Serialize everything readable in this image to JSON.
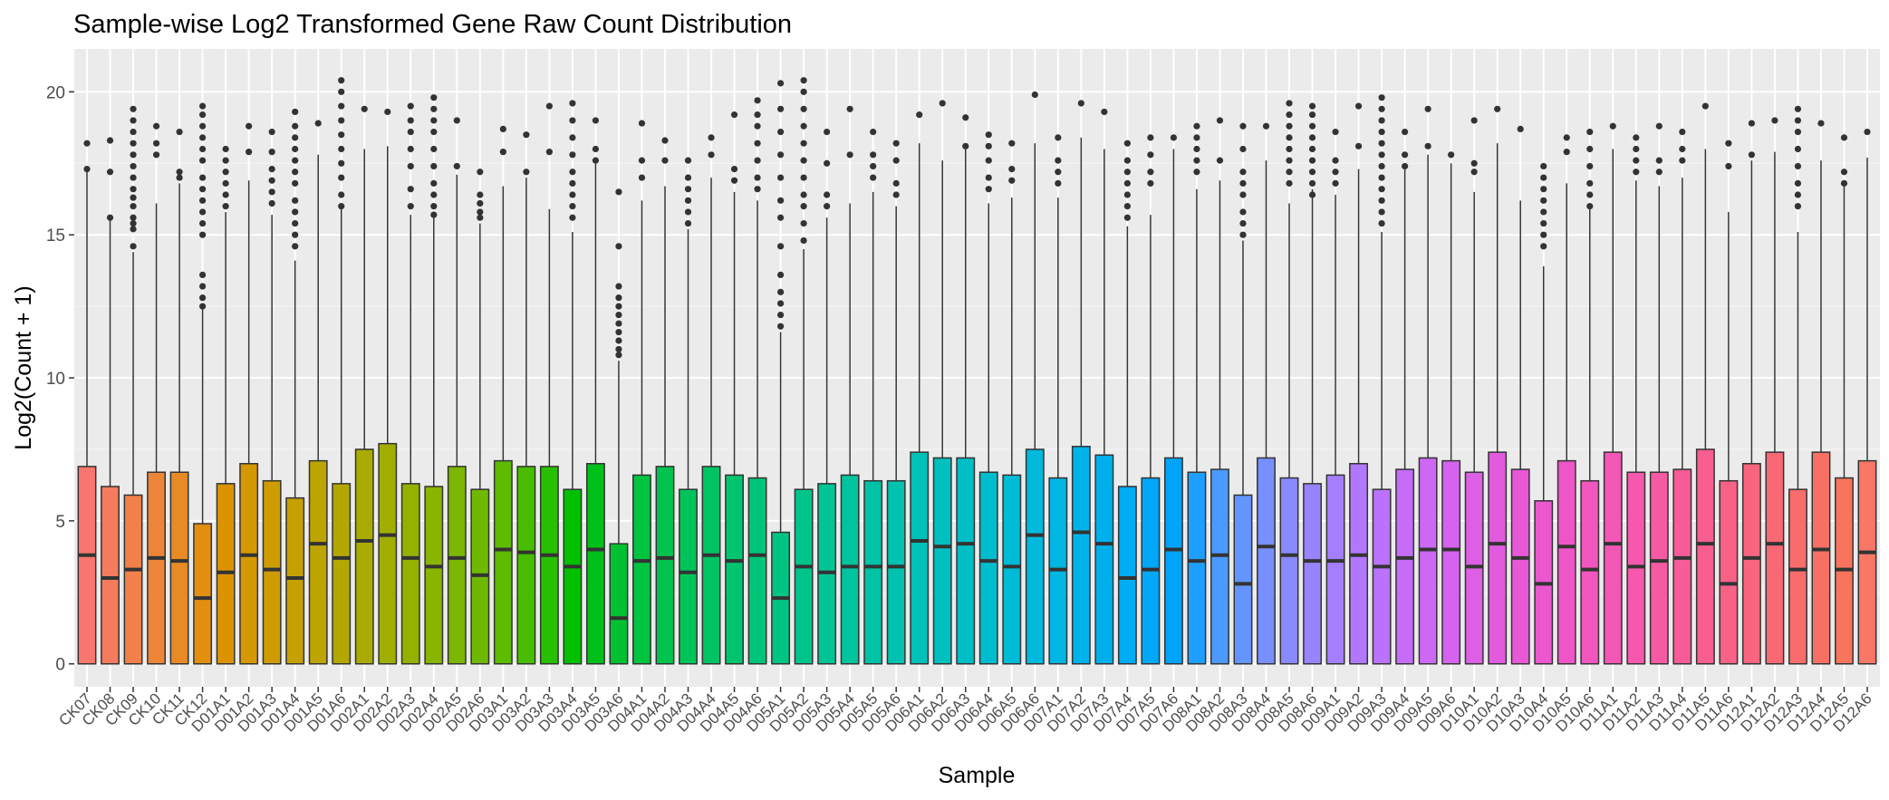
{
  "chart_data": {
    "type": "boxplot",
    "title": "Sample-wise Log2 Transformed Gene Raw Count Distribution",
    "xlabel": "Sample",
    "ylabel": "Log2(Count + 1)",
    "ylim": [
      -0.8,
      21.5
    ],
    "yticks": [
      0,
      5,
      10,
      15,
      20
    ],
    "grid": true,
    "legend": "none",
    "categories": [
      "CK07",
      "CK08",
      "CK09",
      "CK10",
      "CK11",
      "CK12",
      "D01A1",
      "D01A2",
      "D01A3",
      "D01A4",
      "D01A5",
      "D01A6",
      "D02A1",
      "D02A2",
      "D02A3",
      "D02A4",
      "D02A5",
      "D02A6",
      "D03A1",
      "D03A2",
      "D03A3",
      "D03A4",
      "D03A5",
      "D03A6",
      "D04A1",
      "D04A2",
      "D04A3",
      "D04A4",
      "D04A5",
      "D04A6",
      "D05A1",
      "D05A2",
      "D05A3",
      "D05A4",
      "D05A5",
      "D05A6",
      "D06A1",
      "D06A2",
      "D06A3",
      "D06A4",
      "D06A5",
      "D06A6",
      "D07A1",
      "D07A2",
      "D07A3",
      "D07A4",
      "D07A5",
      "D07A6",
      "D08A1",
      "D08A2",
      "D08A3",
      "D08A4",
      "D08A5",
      "D08A6",
      "D09A1",
      "D09A2",
      "D09A3",
      "D09A4",
      "D09A5",
      "D09A6",
      "D10A1",
      "D10A2",
      "D10A3",
      "D10A4",
      "D10A5",
      "D10A6",
      "D11A1",
      "D11A2",
      "D11A3",
      "D11A4",
      "D11A5",
      "D11A6",
      "D12A1",
      "D12A2",
      "D12A3",
      "D12A4",
      "D12A5",
      "D12A6"
    ],
    "q3": [
      6.9,
      6.2,
      5.9,
      6.7,
      6.7,
      4.9,
      6.3,
      7.0,
      6.4,
      5.8,
      7.1,
      6.3,
      7.5,
      7.7,
      6.3,
      6.2,
      6.9,
      6.1,
      7.1,
      6.9,
      6.9,
      6.1,
      7.0,
      4.2,
      6.6,
      6.9,
      6.1,
      6.9,
      6.6,
      6.5,
      4.6,
      6.1,
      6.3,
      6.6,
      6.4,
      6.4,
      7.4,
      7.2,
      7.2,
      6.7,
      6.6,
      7.5,
      6.5,
      7.6,
      7.3,
      6.2,
      6.5,
      7.2,
      6.7,
      6.8,
      5.9,
      7.2,
      6.5,
      6.3,
      6.6,
      7.0,
      6.1,
      6.8,
      7.2,
      7.1,
      6.7,
      7.4,
      6.8,
      5.7,
      7.1,
      6.4,
      7.4,
      6.7,
      6.7,
      6.8,
      7.5,
      6.4,
      7.0,
      7.4,
      6.1,
      7.4,
      6.5,
      7.1
    ],
    "median": [
      3.8,
      3.0,
      3.3,
      3.7,
      3.6,
      2.3,
      3.2,
      3.8,
      3.3,
      3.0,
      4.2,
      3.7,
      4.3,
      4.5,
      3.7,
      3.4,
      3.7,
      3.1,
      4.0,
      3.9,
      3.8,
      3.4,
      4.0,
      1.6,
      3.6,
      3.7,
      3.2,
      3.8,
      3.6,
      3.8,
      2.3,
      3.4,
      3.2,
      3.4,
      3.4,
      3.4,
      4.3,
      4.1,
      4.2,
      3.6,
      3.4,
      4.5,
      3.3,
      4.6,
      4.2,
      3.0,
      3.3,
      4.0,
      3.6,
      3.8,
      2.8,
      4.1,
      3.8,
      3.6,
      3.6,
      3.8,
      3.4,
      3.7,
      4.0,
      4.0,
      3.4,
      4.2,
      3.7,
      2.8,
      4.1,
      3.3,
      4.2,
      3.4,
      3.6,
      3.7,
      4.2,
      2.8,
      3.7,
      4.2,
      3.3,
      4.0,
      3.3,
      3.9
    ],
    "whisker_max": [
      17.3,
      15.5,
      14.4,
      16.1,
      16.8,
      12.4,
      15.8,
      16.9,
      15.7,
      14.1,
      17.8,
      15.9,
      18.0,
      18.1,
      15.7,
      15.6,
      17.1,
      15.4,
      16.7,
      17.0,
      15.9,
      15.1,
      17.5,
      10.6,
      16.2,
      16.7,
      15.2,
      17.0,
      16.5,
      16.2,
      11.6,
      14.5,
      15.6,
      16.1,
      16.5,
      16.0,
      18.2,
      17.6,
      18.0,
      16.1,
      16.3,
      18.2,
      16.3,
      18.4,
      18.0,
      15.3,
      15.7,
      18.0,
      16.6,
      16.9,
      14.8,
      17.6,
      16.1,
      16.6,
      16.4,
      17.3,
      15.1,
      17.3,
      17.8,
      17.5,
      16.5,
      18.2,
      16.2,
      13.9,
      16.8,
      15.9,
      18.0,
      16.9,
      16.7,
      17.0,
      18.0,
      15.8,
      17.6,
      17.9,
      15.1,
      17.6,
      16.9,
      17.7
    ],
    "outliers": [
      [
        17.3,
        18.2
      ],
      [
        15.6,
        17.2,
        18.3
      ],
      [
        14.6,
        15.2,
        15.4,
        15.6,
        16.0,
        16.3,
        16.6,
        17.0,
        17.4,
        17.8,
        18.2,
        18.6,
        19.0,
        19.4
      ],
      [
        17.8,
        18.2,
        18.8
      ],
      [
        17.0,
        17.2,
        18.6
      ],
      [
        12.5,
        12.8,
        13.2,
        13.6,
        15.0,
        15.4,
        15.8,
        16.2,
        16.6,
        17.0,
        17.6,
        18.0,
        18.4,
        18.8,
        19.2,
        19.5
      ],
      [
        16.0,
        16.4,
        16.8,
        17.2,
        17.6,
        18.0
      ],
      [
        17.9,
        18.8
      ],
      [
        16.1,
        16.5,
        16.9,
        17.3,
        17.9,
        18.6
      ],
      [
        14.6,
        15.0,
        15.4,
        15.8,
        16.2,
        16.8,
        17.2,
        17.6,
        18.0,
        18.4,
        18.8,
        19.3
      ],
      [
        18.9
      ],
      [
        16.0,
        16.4,
        17.0,
        17.5,
        18.0,
        18.5,
        19.0,
        19.5,
        20.0,
        20.4
      ],
      [
        19.4
      ],
      [
        19.3
      ],
      [
        16.0,
        16.6,
        17.4,
        18.0,
        18.6,
        19.0,
        19.5
      ],
      [
        15.7,
        16.0,
        16.4,
        16.8,
        17.4,
        18.0,
        18.6,
        19.0,
        19.4,
        19.8
      ],
      [
        17.4,
        19.0
      ],
      [
        15.6,
        15.8,
        16.1,
        16.4,
        17.2
      ],
      [
        17.9,
        18.7
      ],
      [
        17.2,
        18.5
      ],
      [
        17.9,
        19.5
      ],
      [
        15.6,
        16.0,
        16.4,
        16.8,
        17.2,
        17.8,
        18.4,
        19.0,
        19.6
      ],
      [
        17.6,
        18.0,
        19.0
      ],
      [
        10.8,
        11.0,
        11.3,
        11.6,
        11.9,
        12.2,
        12.5,
        12.8,
        13.2,
        14.6,
        16.5
      ],
      [
        17.0,
        17.6,
        18.9
      ],
      [
        17.6,
        18.3
      ],
      [
        15.4,
        15.8,
        16.2,
        16.6,
        17.0,
        17.6
      ],
      [
        17.8,
        18.4
      ],
      [
        16.9,
        17.3,
        19.2
      ],
      [
        16.6,
        17.0,
        17.6,
        18.2,
        18.8,
        19.2,
        19.7
      ],
      [
        11.8,
        12.2,
        12.6,
        13.0,
        13.6,
        14.6,
        15.6,
        16.2,
        17.0,
        17.8,
        18.6,
        19.4,
        20.3
      ],
      [
        14.8,
        15.4,
        16.0,
        16.4,
        17.0,
        17.6,
        18.2,
        18.8,
        19.4,
        20.0,
        20.4
      ],
      [
        16.0,
        16.4,
        17.5,
        18.6
      ],
      [
        17.8,
        19.4
      ],
      [
        17.0,
        17.4,
        17.8,
        18.6
      ],
      [
        16.4,
        16.8,
        17.6,
        18.2
      ],
      [
        19.2
      ],
      [
        19.6
      ],
      [
        18.1,
        19.1
      ],
      [
        16.6,
        17.0,
        17.6,
        18.1,
        18.5
      ],
      [
        16.9,
        17.3,
        18.2
      ],
      [
        19.9
      ],
      [
        16.8,
        17.2,
        17.6,
        18.4
      ],
      [
        19.6
      ],
      [
        19.3
      ],
      [
        15.6,
        16.0,
        16.4,
        16.8,
        17.2,
        17.6,
        18.2
      ],
      [
        16.8,
        17.2,
        17.8,
        18.4
      ],
      [
        18.4
      ],
      [
        17.2,
        17.6,
        18.0,
        18.4,
        18.8
      ],
      [
        17.6,
        19.0
      ],
      [
        15.0,
        15.4,
        15.8,
        16.4,
        16.8,
        17.2,
        18.0,
        18.8
      ],
      [
        18.8
      ],
      [
        16.8,
        17.2,
        17.6,
        18.0,
        18.4,
        18.8,
        19.2,
        19.6
      ],
      [
        16.4,
        16.8,
        17.2,
        17.6,
        18.0,
        18.4,
        18.8,
        19.2,
        19.5
      ],
      [
        16.8,
        17.2,
        17.6,
        18.6
      ],
      [
        18.1,
        19.5
      ],
      [
        15.4,
        15.8,
        16.2,
        16.6,
        17.0,
        17.4,
        17.8,
        18.2,
        18.6,
        19.0,
        19.4,
        19.8
      ],
      [
        17.4,
        17.8,
        18.6
      ],
      [
        18.1,
        19.4
      ],
      [
        17.8
      ],
      [
        17.2,
        17.5,
        19.0
      ],
      [
        19.4
      ],
      [
        18.7
      ],
      [
        14.6,
        15.0,
        15.4,
        15.8,
        16.2,
        16.6,
        17.0,
        17.4
      ],
      [
        17.9,
        18.4
      ],
      [
        16.0,
        16.4,
        16.8,
        17.4,
        18.0,
        18.6
      ],
      [
        18.8
      ],
      [
        17.2,
        17.6,
        18.0,
        18.4
      ],
      [
        17.2,
        17.6,
        18.8
      ],
      [
        17.6,
        18.0,
        18.6
      ],
      [
        19.5
      ],
      [
        17.4,
        18.2
      ],
      [
        17.8,
        18.9
      ],
      [
        19.0
      ],
      [
        16.0,
        16.4,
        16.8,
        17.4,
        18.0,
        18.6,
        19.0,
        19.4
      ],
      [
        18.9
      ],
      [
        16.8,
        17.2,
        18.4
      ],
      [
        18.6
      ]
    ],
    "colors": [
      "#F8766D",
      "#F47B5C",
      "#F1804A",
      "#EC8538",
      "#E88A25",
      "#E28F10",
      "#DC9300",
      "#D59800",
      "#CE9C00",
      "#C6A000",
      "#BDA400",
      "#B4A800",
      "#AAAB00",
      "#A0AE00",
      "#95B100",
      "#89B400",
      "#7CB600",
      "#6EB900",
      "#5DBB00",
      "#48BD00",
      "#28BF00",
      "#00C000",
      "#00C11A",
      "#00C230",
      "#00C340",
      "#00C44D",
      "#00C459",
      "#00C464",
      "#00C56E",
      "#00C578",
      "#00C582",
      "#00C58B",
      "#00C494",
      "#00C49D",
      "#00C3A6",
      "#00C2AF",
      "#00C1B7",
      "#00C0BF",
      "#00BEC6",
      "#00BDCE",
      "#00BBD5",
      "#00B9DB",
      "#00B6E2",
      "#00B3E8",
      "#00B0ED",
      "#00ACF2",
      "#00A8F7",
      "#00A4FB",
      "#1E9FFF",
      "#4B9AFF",
      "#6495FF",
      "#788FFF",
      "#898AFF",
      "#9884FF",
      "#A57EFF",
      "#B178FF",
      "#BB72FD",
      "#C56CF8",
      "#CE67F3",
      "#D663ED",
      "#DC5FE6",
      "#E25BDF",
      "#E758D7",
      "#EB57CF",
      "#EE56C7",
      "#F156BE",
      "#F357B5",
      "#F558AC",
      "#F65AA3",
      "#F75C99",
      "#F85F90",
      "#F86287",
      "#F8657E",
      "#F86875",
      "#F86C6C",
      "#F87064",
      "#F8745C",
      "#F87766"
    ]
  }
}
